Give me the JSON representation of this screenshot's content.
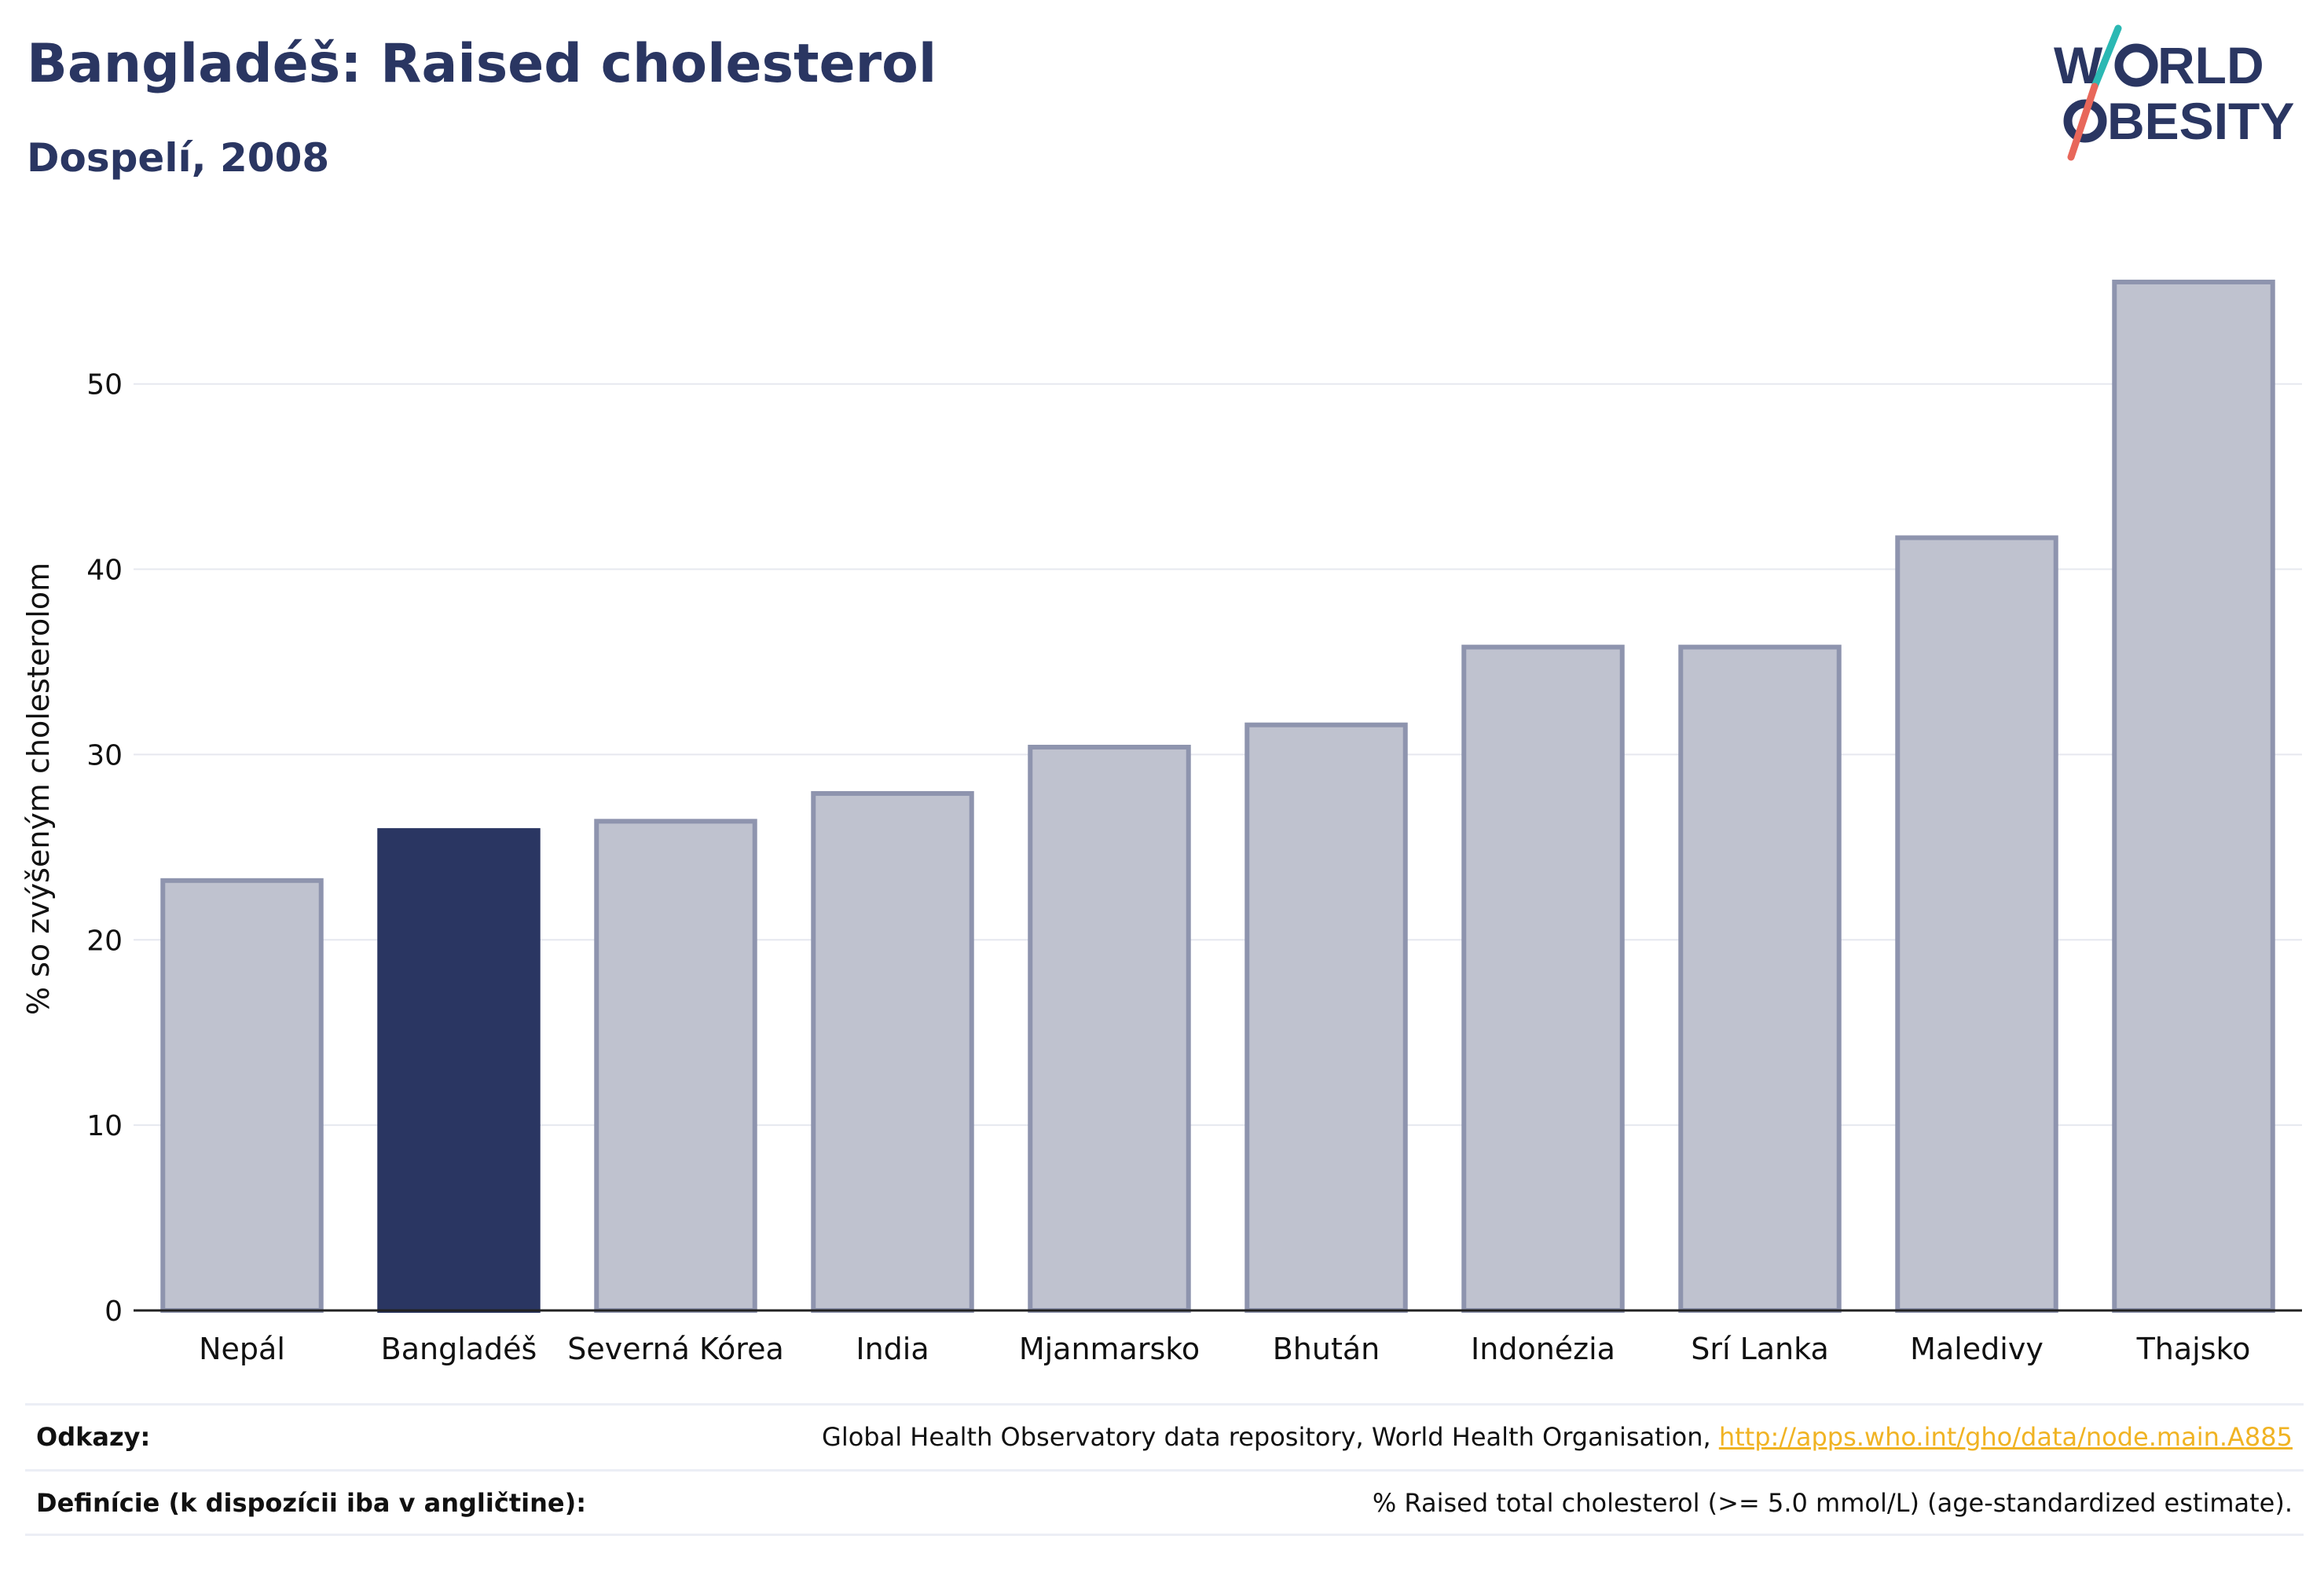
{
  "header": {
    "title": "Bangladéš: Raised cholesterol",
    "subtitle": "Dospelí, 2008"
  },
  "logo": {
    "line1": "W RLD",
    "line2": "BESITY",
    "text": "WORLD OBESITY"
  },
  "colors": {
    "highlight": "#2a3662",
    "bar_fill": "#bfc2cf",
    "bar_stroke": "#8e94ae",
    "logo_teal": "#2bb8b3",
    "logo_coral": "#e8675a",
    "link": "#f0b323"
  },
  "chart_data": {
    "type": "bar",
    "title": "Bangladéš: Raised cholesterol",
    "subtitle": "Dospelí, 2008",
    "xlabel": "",
    "ylabel": "% so zvýšeným cholesterolom",
    "categories": [
      "Nepál",
      "Bangladéš",
      "Severná Kórea",
      "India",
      "Mjanmarsko",
      "Bhután",
      "Indonézia",
      "Srí Lanka",
      "Maledivy",
      "Thajsko"
    ],
    "values": [
      23.2,
      25.9,
      26.4,
      27.9,
      30.4,
      31.6,
      35.8,
      35.8,
      41.7,
      55.5
    ],
    "highlight": "Bangladéš",
    "ylim": [
      0,
      58
    ],
    "yticks": [
      0,
      10,
      20,
      30,
      40,
      50
    ],
    "grid": true,
    "legend": "none"
  },
  "footer": {
    "sources_label": "Odkazy:",
    "sources_text": "Global Health Observatory data repository, World Health Organisation, ",
    "sources_link": "http://apps.who.int/gho/data/node.main.A885",
    "definitions_label": "Definície (k dispozícii iba v angličtine):",
    "definitions_text": "% Raised total cholesterol (>= 5.0 mmol/L) (age-standardized estimate)."
  }
}
